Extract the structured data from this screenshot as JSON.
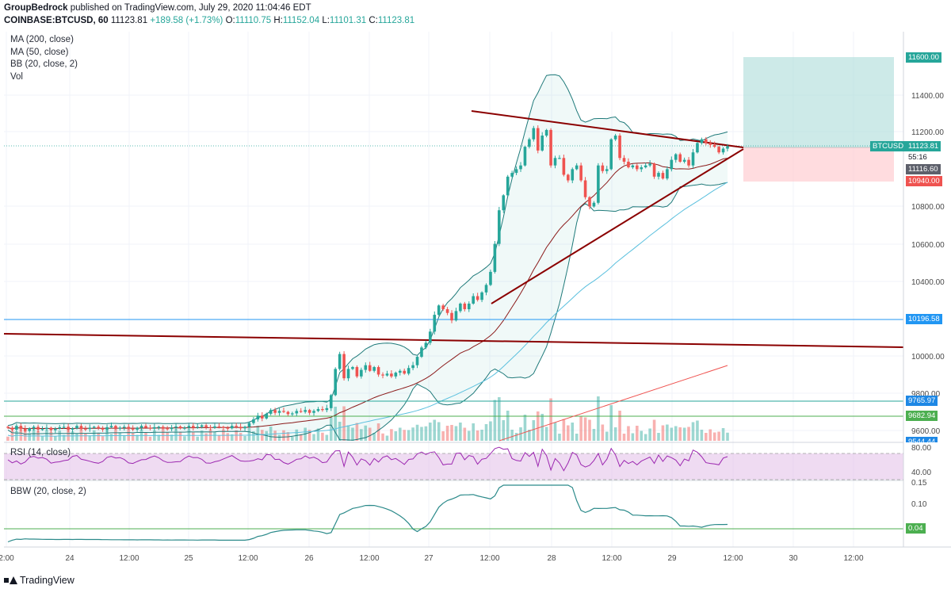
{
  "header": {
    "publisher": "GroupBedrock",
    "published_text": " published on TradingView.com, July 29, 2020 11:04:46 EDT",
    "symbol": "COINBASE:BTCUSD, 60",
    "last": "11123.81",
    "change": "+189.58 (+1.73%)",
    "o_label": "O:",
    "o_value": "11110.75",
    "h_label": "H:",
    "h_value": "11152.04",
    "l_label": "L:",
    "l_value": "11101.31",
    "c_label": "C:",
    "c_value": "11123.81"
  },
  "legend": [
    "MA (200, close)",
    "MA (50, close)",
    "BB (20, close, 2)",
    "Vol"
  ],
  "rsi_label": "RSI (14, close)",
  "bbw_label": "BBW (20, close, 2)",
  "footer": {
    "brand": "TradingView"
  },
  "price_axis": {
    "ticks": [
      "11600.00",
      "11400.00",
      "11200.00",
      "10800.00",
      "10600.00",
      "10400.00",
      "10000.00",
      "9800.00",
      "9600.00"
    ],
    "tags": {
      "target": "11600.00",
      "symbol": "BTCUSD",
      "last": "11123.81",
      "countdown": "55:16",
      "ma": "11116.60",
      "stop": "10940.00",
      "level1": "10196.58",
      "level2": "9765.97",
      "level3": "9682.94",
      "partial": "9544.44"
    }
  },
  "rsi_axis": [
    "80.00",
    "40.00"
  ],
  "bbw_axis": [
    "0.15",
    "0.10",
    "0.04"
  ],
  "time_axis": [
    "2:00",
    "24",
    "12:00",
    "25",
    "12:00",
    "26",
    "12:00",
    "27",
    "12:00",
    "28",
    "12:00",
    "29",
    "12:00",
    "30",
    "12:00"
  ],
  "colors": {
    "up": "#26a69a",
    "down": "#ef5350",
    "trendline": "#8b0000",
    "ma200": "#5bc0de",
    "ma50": "#8b1a1a",
    "bb": "#1f7a7a",
    "hline": "#2196f3",
    "green_line": "#4caf50",
    "rsi": "#9c27b0",
    "bbw": "#2b8a8a",
    "target_zone": "#b2dfdb",
    "stop_zone": "#ffcdd2"
  },
  "chart_data": {
    "type": "candlestick",
    "symbol": "COINBASE:BTCUSD",
    "interval": "60",
    "ylim": [
      9530,
      11700
    ],
    "indicators": [
      "MA (200, close)",
      "MA (50, close)",
      "BB (20, close, 2)",
      "Vol",
      "RSI (14, close)",
      "BBW (20, close, 2)"
    ],
    "horizontal_levels": [
      10196.58,
      9765.97,
      9682.94
    ],
    "position": {
      "entry": 11123.81,
      "target": 11600.0,
      "stop": 10940.0
    },
    "series": [
      {
        "name": "close",
        "values": [
          9615,
          9605,
          9625,
          9610,
          9598,
          9612,
          9620,
          9605,
          9608,
          9615,
          9602,
          9610,
          9618,
          9620,
          9605,
          9612,
          9625,
          9610,
          9608,
          9615,
          9620,
          9612,
          9605,
          9618,
          9625,
          9612,
          9615,
          9620,
          9610,
          9605,
          9615,
          9625,
          9615,
          9610,
          9618,
          9620,
          9612,
          9608,
          9615,
          9622,
          9612,
          9615,
          9625,
          9615,
          9620,
          9628,
          9618,
          9615,
          9622,
          9620,
          9615,
          9612,
          9625,
          9620,
          9612,
          9620,
          9640,
          9660,
          9680,
          9665,
          9690,
          9710,
          9695,
          9705,
          9700,
          9688,
          9692,
          9705,
          9700,
          9710,
          9695,
          9705,
          9715,
          9710,
          9720,
          9790,
          9930,
          10010,
          9880,
          9930,
          9940,
          9890,
          9925,
          9950,
          9920,
          9940,
          9900,
          9895,
          9905,
          9890,
          9910,
          9920,
          9905,
          9935,
          9950,
          9995,
          10045,
          10070,
          10130,
          10220,
          10270,
          10250,
          10230,
          10190,
          10240,
          10280,
          10250,
          10280,
          10320,
          10300,
          10340,
          10380,
          10450,
          10600,
          10780,
          10860,
          10960,
          10980,
          11000,
          11020,
          11120,
          11160,
          11220,
          11100,
          11180,
          11210,
          11020,
          11060,
          11060,
          10970,
          10940,
          11000,
          11020,
          10940,
          10850,
          10800,
          10820,
          11020,
          10990,
          11000,
          11160,
          11180,
          11060,
          11040,
          11010,
          11020,
          11000,
          11010,
          11020,
          11030,
          10960,
          10980,
          10950,
          11000,
          11050,
          11080,
          11040,
          11050,
          11020,
          11090,
          11140,
          11160,
          11140,
          11130,
          11120,
          11090,
          11110,
          11123
        ]
      }
    ]
  }
}
